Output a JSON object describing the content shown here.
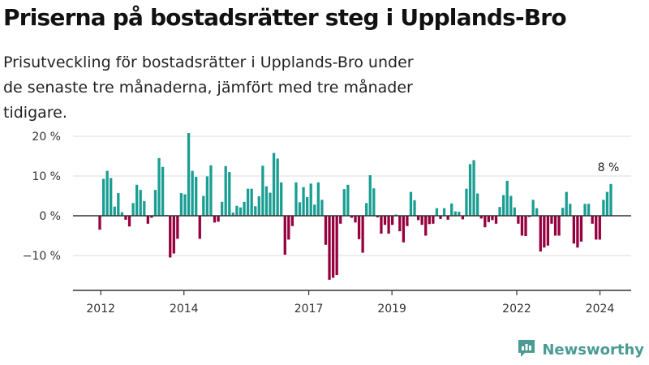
{
  "title": "Priserna på bostadsrätter steg i Upplands-Bro",
  "subtitle": "Prisutveckling för bostadsrätter i Upplands-Bro under de senaste tre månaderna, jämfört med tre månader tidigare.",
  "brand": {
    "name": "Newsworthy",
    "icon": "newsworthy-logo-icon"
  },
  "colors": {
    "positive": "#1a9e93",
    "negative": "#96003f",
    "grid": "#dddddd",
    "axis": "#333333"
  },
  "chart_data": {
    "type": "bar",
    "ylabel": "",
    "xlabel": "",
    "ylim": [
      -18,
      23
    ],
    "yticks": [
      20,
      10,
      0,
      -10
    ],
    "ytick_labels": [
      "20 %",
      "10 %",
      "0 %",
      "−10 %"
    ],
    "grid": true,
    "xticks": [
      "2012",
      "2014",
      "2017",
      "2019",
      "2022",
      "2024"
    ],
    "xtick_positions": [
      2012,
      2014,
      2017,
      2019,
      2022,
      2024
    ],
    "x_range": [
      2011.333,
      2024.75
    ],
    "end_label": "8 %",
    "series": [
      {
        "values": [
          -3.5,
          9.3,
          11.3,
          9.5,
          2.3,
          5.7,
          0.9,
          -1.0,
          -2.7,
          3.2,
          7.8,
          6.5,
          3.7,
          -2.0,
          -0.5,
          6.5,
          14.5,
          12.3,
          0.2,
          -10.5,
          -9.5,
          -5.8,
          5.7,
          5.4,
          20.8,
          11.3,
          9.8,
          -5.8,
          5.0,
          9.9,
          12.7,
          -1.7,
          -1.5,
          3.5,
          12.5,
          11.0,
          0.8,
          2.5,
          2.1,
          3.5,
          6.8,
          6.8,
          2.4,
          4.9,
          12.6,
          7.4,
          5.8,
          15.8,
          14.4,
          8.4,
          -9.8,
          -6.0,
          -2.6,
          8.4,
          3.4,
          7.2,
          4.7,
          8.1,
          2.8,
          8.4,
          4.0,
          -7.3,
          -16.1,
          -15.6,
          -14.9,
          -2.0,
          6.7,
          7.8,
          -0.5,
          -1.7,
          -5.9,
          -9.3,
          3.2,
          10.2,
          6.9,
          -0.4,
          -4.5,
          -2.3,
          -4.5,
          -2.3,
          0.3,
          -3.9,
          -6.7,
          -2.6,
          6.0,
          3.9,
          -1.1,
          -2.3,
          -5.0,
          -2.1,
          -2.0,
          1.9,
          -0.8,
          1.9,
          -1.0,
          3.1,
          1.1,
          1.0,
          -0.9,
          6.8,
          13.0,
          14.0,
          5.6,
          -0.7,
          -2.9,
          -1.6,
          -1.1,
          -2.0,
          2.2,
          5.2,
          8.8,
          5.0,
          2.1,
          -2.0,
          -5.0,
          -5.1,
          -0.3,
          4.0,
          1.9,
          -9.0,
          -8.0,
          -7.5,
          -2.0,
          -5.0,
          -5.0,
          2.0,
          6.0,
          3.0,
          -7.0,
          -8.0,
          -6.5,
          3.0,
          3.0,
          -2.0,
          -6.0,
          -6.0,
          4.0,
          6.0,
          8.0
        ]
      }
    ]
  }
}
